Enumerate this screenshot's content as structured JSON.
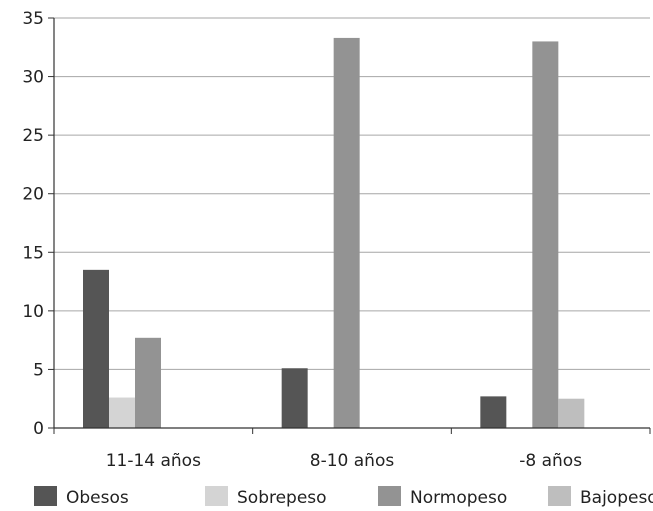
{
  "chart_data": {
    "type": "bar",
    "title": "",
    "xlabel": "",
    "ylabel": "",
    "categories": [
      "11-14 años",
      "8-10 años",
      "-8 años"
    ],
    "series": [
      {
        "name": "Obesos",
        "color": "#555555",
        "values": [
          13.5,
          5.1,
          2.7
        ]
      },
      {
        "name": "Sobrepeso",
        "color": "#d4d4d4",
        "values": [
          2.6,
          0,
          0
        ]
      },
      {
        "name": "Normopeso",
        "color": "#939393",
        "values": [
          7.7,
          33.3,
          33.0
        ]
      },
      {
        "name": "Bajopeso",
        "color": "#bebebe",
        "values": [
          0,
          0,
          2.5
        ]
      }
    ],
    "ylim": [
      0,
      35
    ],
    "yticks": [
      0,
      5,
      10,
      15,
      20,
      25,
      30,
      35
    ],
    "grid": true,
    "legend_position": "bottom"
  }
}
